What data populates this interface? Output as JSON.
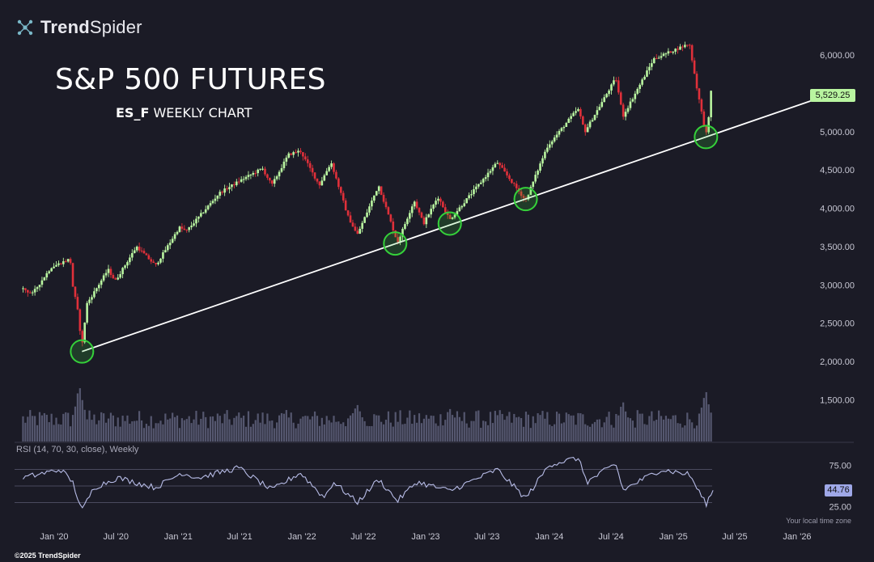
{
  "brand": {
    "name_bold": "Trend",
    "name_regular": "Spider",
    "icon": "trendspider-logo-icon"
  },
  "title": "S&P 500 FUTURES",
  "subtitle": {
    "ticker": "ES_F",
    "text": "WEEKLY CHART"
  },
  "price_badge": "5,529.25",
  "rsi_badge": "44.76",
  "rsi_label": "RSI (14, 70, 30, close), Weekly",
  "timezone_label": "Your local time zone",
  "copyright": "©2025 TrendSpider",
  "colors": {
    "background": "#1b1b26",
    "up_candle": "#b9f5a0",
    "down_candle": "#e0303a",
    "trendline": "#ffffff",
    "circle": "#35d13a",
    "rsi_line": "#b8bde8",
    "volume": "#55576f"
  },
  "chart_data": [
    {
      "type": "candlestick",
      "title": "S&P 500 FUTURES",
      "subtitle": "ES_F WEEKLY CHART",
      "y_ticks": [
        1500,
        2000,
        2500,
        3000,
        3500,
        4000,
        4500,
        5000,
        5500,
        6000
      ],
      "y_tick_labels": [
        "1,500.00",
        "2,000.00",
        "2,500.00",
        "3,000.00",
        "3,500.00",
        "4,000.00",
        "4,500.00",
        "5,000.00",
        "5,500.00",
        "6,000.00"
      ],
      "ylim": [
        1250,
        6250
      ],
      "x_ticks": [
        "Jan '20",
        "Jul '20",
        "Jan '21",
        "Jul '21",
        "Jan '22",
        "Jul '22",
        "Jan '23",
        "Jul '23",
        "Jan '24",
        "Jul '24",
        "Jan '25",
        "Jul '25",
        "Jan '26"
      ],
      "close_path": [
        [
          "2019-10-01",
          2950
        ],
        [
          "2019-10-28",
          2880
        ],
        [
          "2019-12-23",
          3230
        ],
        [
          "2020-02-17",
          3340
        ],
        [
          "2020-02-24",
          3000
        ],
        [
          "2020-03-09",
          2700
        ],
        [
          "2020-03-23",
          2200
        ],
        [
          "2020-04-06",
          2750
        ],
        [
          "2020-06-08",
          3200
        ],
        [
          "2020-06-29",
          3050
        ],
        [
          "2020-08-31",
          3500
        ],
        [
          "2020-10-26",
          3250
        ],
        [
          "2021-01-04",
          3750
        ],
        [
          "2021-01-25",
          3700
        ],
        [
          "2021-05-03",
          4200
        ],
        [
          "2021-06-28",
          4350
        ],
        [
          "2021-09-06",
          4520
        ],
        [
          "2021-10-04",
          4300
        ],
        [
          "2021-11-22",
          4700
        ],
        [
          "2021-12-27",
          4750
        ],
        [
          "2022-02-21",
          4300
        ],
        [
          "2022-03-28",
          4600
        ],
        [
          "2022-05-16",
          3900
        ],
        [
          "2022-06-13",
          3650
        ],
        [
          "2022-08-15",
          4300
        ],
        [
          "2022-10-10",
          3550
        ],
        [
          "2022-11-28",
          4100
        ],
        [
          "2022-12-26",
          3800
        ],
        [
          "2023-02-06",
          4150
        ],
        [
          "2023-03-13",
          3850
        ],
        [
          "2023-07-31",
          4600
        ],
        [
          "2023-10-23",
          4100
        ],
        [
          "2023-12-25",
          4800
        ],
        [
          "2024-03-25",
          5300
        ],
        [
          "2024-04-15",
          5000
        ],
        [
          "2024-07-15",
          5700
        ],
        [
          "2024-08-05",
          5200
        ],
        [
          "2024-11-04",
          5950
        ],
        [
          "2025-02-17",
          6150
        ],
        [
          "2025-03-10",
          5600
        ],
        [
          "2025-04-07",
          4950
        ],
        [
          "2025-04-28",
          5529.25
        ]
      ],
      "volume_spikes": [
        [
          "2020-03-16",
          1.0
        ],
        [
          "2025-04-07",
          0.9
        ],
        [
          "2022-06-13",
          0.7
        ],
        [
          "2024-08-05",
          0.7
        ],
        [
          "2023-03-13",
          0.6
        ]
      ],
      "trendline": {
        "from": [
          "2020-03-23",
          2130
        ],
        "to": [
          "2025-08-25",
          5400
        ]
      },
      "touch_circles": [
        [
          "2020-03-23",
          2130
        ],
        [
          "2022-10-03",
          3540
        ],
        [
          "2023-03-13",
          3800
        ],
        [
          "2023-10-23",
          4120
        ],
        [
          "2025-04-07",
          4930
        ]
      ]
    },
    {
      "type": "line",
      "title": "RSI (14, 70, 30, close), Weekly",
      "ylim": [
        15,
        90
      ],
      "y_ticks": [
        25,
        75
      ],
      "y_tick_labels": [
        "25.00",
        "75.00"
      ],
      "levels": [
        30,
        50,
        70
      ],
      "path": [
        [
          "2019-10-01",
          60
        ],
        [
          "2020-01-20",
          70
        ],
        [
          "2020-02-24",
          55
        ],
        [
          "2020-03-23",
          20
        ],
        [
          "2020-04-27",
          48
        ],
        [
          "2020-07-06",
          60
        ],
        [
          "2020-10-26",
          48
        ],
        [
          "2021-01-11",
          66
        ],
        [
          "2021-03-01",
          60
        ],
        [
          "2021-06-28",
          72
        ],
        [
          "2021-10-04",
          45
        ],
        [
          "2021-12-27",
          66
        ],
        [
          "2022-03-07",
          36
        ],
        [
          "2022-04-04",
          55
        ],
        [
          "2022-06-13",
          30
        ],
        [
          "2022-08-15",
          58
        ],
        [
          "2022-10-10",
          32
        ],
        [
          "2022-12-05",
          55
        ],
        [
          "2023-03-13",
          44
        ],
        [
          "2023-07-31",
          70
        ],
        [
          "2023-10-23",
          35
        ],
        [
          "2024-01-01",
          76
        ],
        [
          "2024-03-25",
          84
        ],
        [
          "2024-04-22",
          55
        ],
        [
          "2024-07-15",
          77
        ],
        [
          "2024-08-05",
          45
        ],
        [
          "2024-11-25",
          70
        ],
        [
          "2025-02-17",
          64
        ],
        [
          "2025-04-07",
          28
        ],
        [
          "2025-04-28",
          44.76
        ]
      ]
    }
  ]
}
